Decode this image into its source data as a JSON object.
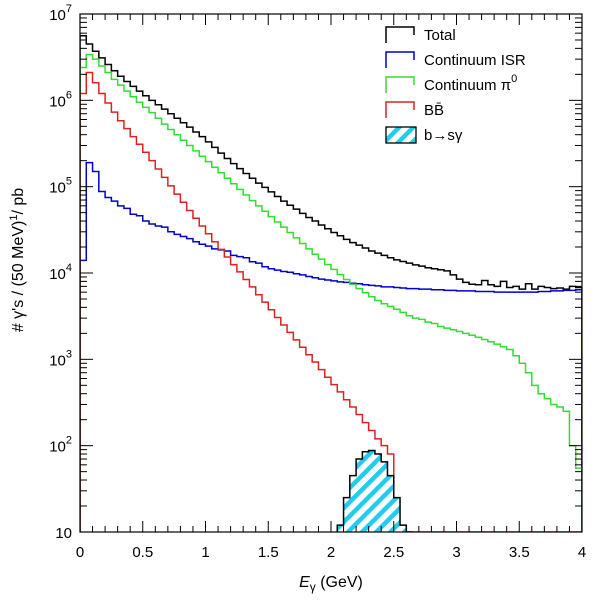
{
  "chart_data": {
    "type": "line",
    "style": "step-histogram",
    "xlabel": "E_γ (GeV)",
    "xlabel_main": "E",
    "xlabel_sub": "γ",
    "xlabel_unit": " (GeV)",
    "ylabel": "# γ's / (50 MeV)¹/ pb",
    "ylabel_main": "# γ's / (50 MeV)",
    "ylabel_sup": "1",
    "ylabel_tail": "/ pb",
    "xlim": [
      0,
      4
    ],
    "ylim": [
      10,
      10000000
    ],
    "yscale": "log",
    "bin_width": 0.05,
    "grid": false,
    "legend_position": "top-right",
    "x_ticks": [
      {
        "value": 0,
        "label": "0"
      },
      {
        "value": 0.5,
        "label": "0.5"
      },
      {
        "value": 1,
        "label": "1"
      },
      {
        "value": 1.5,
        "label": "1.5"
      },
      {
        "value": 2,
        "label": "2"
      },
      {
        "value": 2.5,
        "label": "2.5"
      },
      {
        "value": 3,
        "label": "3"
      },
      {
        "value": 3.5,
        "label": "3.5"
      },
      {
        "value": 4,
        "label": "4"
      }
    ],
    "y_ticks": [
      {
        "value": 10,
        "base": "10",
        "exp": ""
      },
      {
        "value": 100,
        "base": "10",
        "exp": "2"
      },
      {
        "value": 1000,
        "base": "10",
        "exp": "3"
      },
      {
        "value": 10000,
        "base": "10",
        "exp": "4"
      },
      {
        "value": 100000,
        "base": "10",
        "exp": "5"
      },
      {
        "value": 1000000,
        "base": "10",
        "exp": "6"
      },
      {
        "value": 10000000,
        "base": "10",
        "exp": "7"
      }
    ],
    "series": [
      {
        "name": "Total",
        "label": "Total",
        "label_sup": "",
        "color": "#000000",
        "x_start": 0,
        "values": [
          5600000,
          4500000,
          3700000,
          3100000,
          2600000,
          2200000,
          1900000,
          1650000,
          1450000,
          1280000,
          1130000,
          1000000,
          890000,
          790000,
          700000,
          620000,
          550000,
          490000,
          430000,
          380000,
          330000,
          285000,
          245000,
          212000,
          185000,
          162000,
          142000,
          125000,
          110000,
          98000,
          87000,
          77000,
          68000,
          61000,
          55000,
          49000,
          44000,
          40000,
          36000,
          32500,
          29500,
          27000,
          24500,
          22500,
          21000,
          19500,
          18000,
          17000,
          16000,
          15000,
          14200,
          13600,
          13000,
          12400,
          12000,
          11500,
          11200,
          10900,
          10600,
          9500,
          8500,
          7800,
          7400,
          7300,
          8200,
          7300,
          7000,
          8000,
          6800,
          7000,
          6500,
          7500,
          6500,
          7000,
          6800,
          6600,
          6700,
          6500,
          7000,
          6800
        ]
      },
      {
        "name": "Continuum ISR",
        "label": "Continuum ISR",
        "label_sup": "",
        "color": "#0000cc",
        "x_start": 0,
        "values": [
          14000,
          190000,
          150000,
          88000,
          75000,
          68000,
          60000,
          56000,
          48000,
          46000,
          40000,
          37000,
          35000,
          34000,
          30000,
          28000,
          26500,
          25000,
          23000,
          21500,
          20500,
          19000,
          18500,
          18000,
          16000,
          15500,
          15000,
          13500,
          13000,
          11800,
          11200,
          10800,
          10400,
          10200,
          9800,
          9500,
          9100,
          8800,
          8500,
          8300,
          8100,
          7900,
          7800,
          7600,
          7500,
          7300,
          7200,
          7100,
          6900,
          6900,
          6800,
          6700,
          6600,
          6600,
          6500,
          6500,
          6400,
          6400,
          6300,
          6300,
          6200,
          6200,
          6200,
          6100,
          6100,
          6100,
          6000,
          6000,
          6000,
          6000,
          6000,
          6000,
          6000,
          6100,
          6100,
          6200,
          6200,
          6300,
          6300,
          6400
        ]
      },
      {
        "name": "Continuum π⁰",
        "label": "Continuum π",
        "label_sup": "0",
        "color": "#33dd33",
        "x_start": 0,
        "values": [
          2400000,
          3400000,
          3000000,
          2500000,
          2100000,
          1750000,
          1500000,
          1280000,
          1100000,
          950000,
          830000,
          720000,
          620000,
          530000,
          460000,
          400000,
          345000,
          300000,
          260000,
          225000,
          195000,
          168000,
          145000,
          125000,
          108000,
          93000,
          80000,
          69000,
          60000,
          52000,
          45000,
          39000,
          34000,
          29500,
          25500,
          22000,
          19000,
          16500,
          14500,
          12500,
          11000,
          9600,
          8400,
          7400,
          6600,
          5900,
          5300,
          4800,
          4400,
          4100,
          3800,
          3500,
          3200,
          3000,
          2900,
          2700,
          2600,
          2400,
          2300,
          2200,
          2100,
          2000,
          1900,
          1800,
          1700,
          1600,
          1500,
          1400,
          1300,
          1100,
          900,
          700,
          500,
          400,
          350,
          300,
          280,
          250,
          100,
          55
        ]
      },
      {
        "name": "BB̄",
        "label": "BB̄",
        "label_sup": "",
        "color": "#dd2222",
        "x_start": 0,
        "values": [
          1200000,
          2100000,
          1600000,
          1200000,
          930000,
          730000,
          580000,
          470000,
          380000,
          310000,
          250000,
          200000,
          160000,
          128000,
          102000,
          82000,
          66000,
          53000,
          43000,
          35000,
          28500,
          23000,
          18800,
          15300,
          12500,
          10300,
          8400,
          6900,
          5600,
          4600,
          3750,
          3050,
          2500,
          2050,
          1680,
          1380,
          1130,
          930,
          760,
          620,
          510,
          420,
          340,
          280,
          230,
          185,
          150,
          120,
          100,
          80,
          10,
          10,
          10,
          10,
          10,
          10,
          10,
          10,
          10,
          10,
          10,
          10,
          10,
          10,
          10,
          10,
          10,
          10,
          10,
          10,
          10,
          10,
          10,
          10,
          10,
          10,
          10,
          10,
          10,
          10
        ]
      },
      {
        "name": "b→sγ",
        "label": "b→sγ",
        "label_sup": "",
        "color": "#000000",
        "fill": "#22ccee",
        "hatched": true,
        "x_start": 2.05,
        "values": [
          12,
          25,
          45,
          70,
          85,
          88,
          80,
          65,
          45,
          25,
          12,
          6
        ]
      }
    ]
  }
}
